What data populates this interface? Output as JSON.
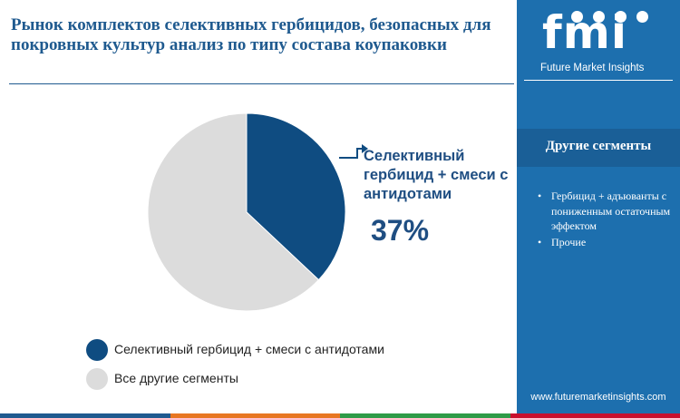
{
  "header": {
    "title": "Рынок комплектов селективных гербицидов, безопасных для покровных культур анализ по типу состава коупаковки"
  },
  "colors": {
    "accent": "#1f5a8f",
    "series_primary": "#0f4c81",
    "series_other": "#dcdcdc",
    "sidebar_bg": "#1d6fae",
    "bottom_bar": [
      "#1f5a8f",
      "#e87722",
      "#2e9b48",
      "#c8102e"
    ]
  },
  "chart_data": {
    "type": "pie",
    "title": "Рынок комплектов селективных гербицидов, безопасных для покровных культур анализ по типу состава коупаковки",
    "slices": [
      {
        "name": "Селективный гербицид + смеси с антидотами",
        "value": 37,
        "color": "#0f4c81"
      },
      {
        "name": "Все другие сегменты",
        "value": 63,
        "color": "#dcdcdc"
      }
    ],
    "callout": {
      "label": "Селективный гербицид + смеси с антидотами",
      "value_label": "37%"
    },
    "legend": {
      "position": "bottom-left",
      "entries": [
        "Селективный гербицид + смеси с антидотами",
        "Все другие сегменты"
      ]
    }
  },
  "sidebar": {
    "logo_text": "fmi",
    "logo_tagline": "Future Market Insights",
    "heading": "Другие сегменты",
    "items": [
      {
        "label": "Гербицид + адъюванты с пониженным остаточным эффектом"
      },
      {
        "label": "Прочие"
      }
    ],
    "url": "www.futuremarketinsights.com",
    "bullet_symbol": "•"
  }
}
